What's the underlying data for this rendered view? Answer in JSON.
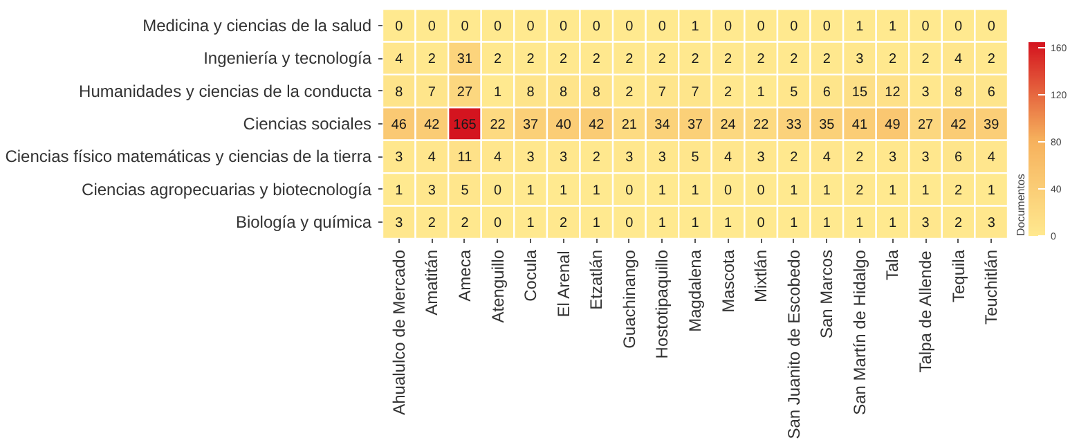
{
  "chart_data": {
    "type": "heatmap",
    "clabel": "Documentos",
    "categories": [
      "Ahualulco de Mercado",
      "Amatitán",
      "Ameca",
      "Atenguillo",
      "Cocula",
      "El Arenal",
      "Etzatlán",
      "Guachinango",
      "Hostotipaquillo",
      "Magdalena",
      "Mascota",
      "Mixtlán",
      "San Juanito de Escobedo",
      "San Marcos",
      "San Martín de Hidalgo",
      "Tala",
      "Talpa de Allende",
      "Tequila",
      "Teuchitlán"
    ],
    "y_categories": [
      "Medicina y ciencias de la salud",
      "Ingeniería y tecnología",
      "Humanidades y ciencias de la conducta",
      "Ciencias sociales",
      "Ciencias físico matemáticas y ciencias de la tierra",
      "Ciencias agropecuarias y biotecnología",
      "Biología y química"
    ],
    "cells": [
      [
        0,
        0,
        0,
        0,
        0,
        0,
        0,
        0,
        0,
        1,
        0,
        0,
        0,
        0,
        1,
        1,
        0,
        0,
        0
      ],
      [
        4,
        2,
        31,
        2,
        2,
        2,
        2,
        2,
        2,
        2,
        2,
        2,
        2,
        2,
        3,
        2,
        2,
        4,
        2
      ],
      [
        8,
        7,
        27,
        1,
        8,
        8,
        8,
        2,
        7,
        7,
        2,
        1,
        5,
        6,
        15,
        12,
        3,
        8,
        6
      ],
      [
        46,
        42,
        165,
        22,
        37,
        40,
        42,
        21,
        34,
        37,
        24,
        22,
        33,
        35,
        41,
        49,
        27,
        42,
        39
      ],
      [
        3,
        4,
        11,
        4,
        3,
        3,
        2,
        3,
        3,
        5,
        4,
        3,
        2,
        4,
        2,
        3,
        3,
        6,
        4
      ],
      [
        1,
        3,
        5,
        0,
        1,
        1,
        1,
        0,
        1,
        1,
        0,
        0,
        1,
        1,
        2,
        1,
        1,
        2,
        1
      ],
      [
        3,
        2,
        2,
        0,
        1,
        2,
        1,
        0,
        1,
        1,
        1,
        0,
        1,
        1,
        1,
        1,
        3,
        2,
        3
      ]
    ],
    "clim": [
      0,
      165
    ],
    "cticks": [
      0,
      40,
      80,
      120,
      160
    ],
    "data_labels": true
  }
}
